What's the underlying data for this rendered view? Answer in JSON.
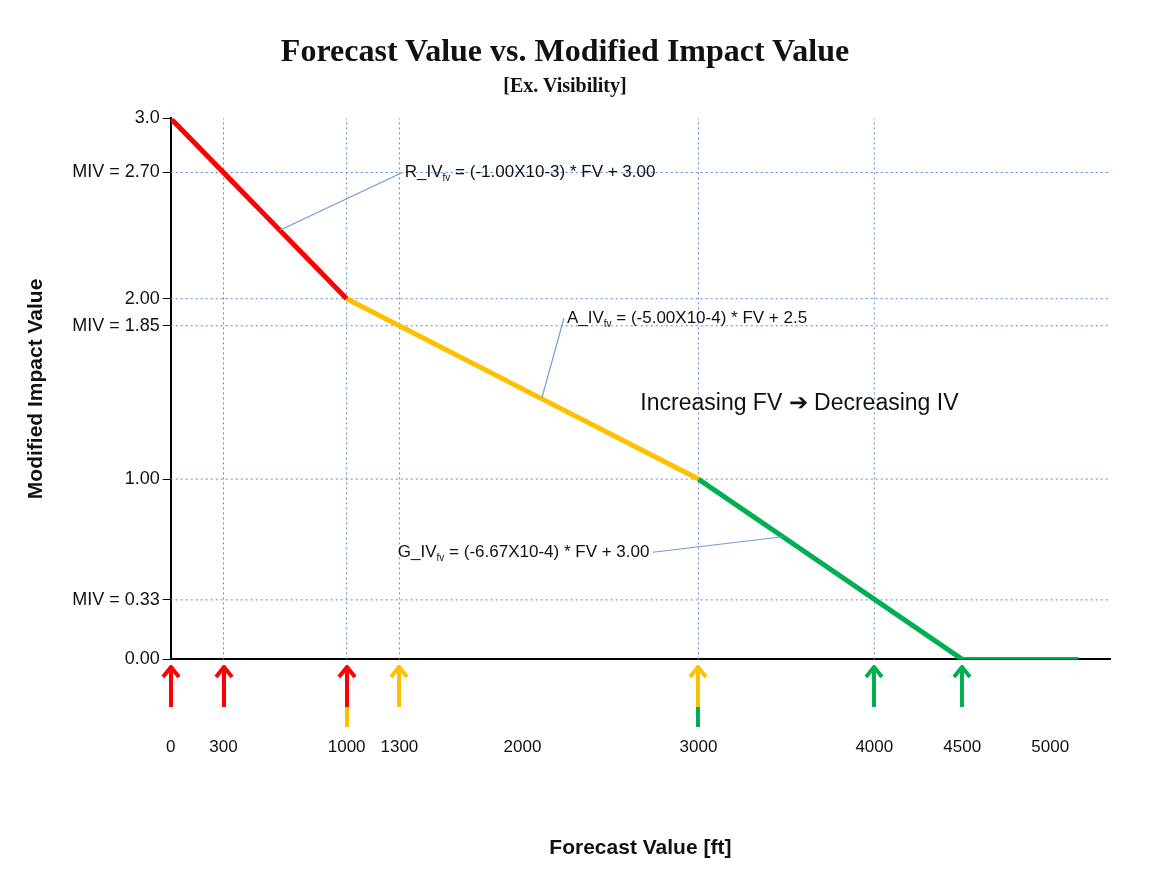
{
  "chart_data": {
    "type": "line",
    "title": "Forecast Value vs. Modified Impact Value",
    "subtitle": "[Ex. Visibility]",
    "xlabel": "Forecast Value [ft]",
    "ylabel": "Modified Impact Value",
    "series": [
      {
        "color": "#ff0000",
        "x": [
          0,
          1000
        ],
        "values": [
          3,
          2
        ]
      },
      {
        "color": "#ffc000",
        "x": [
          1000,
          3000
        ],
        "values": [
          2,
          1
        ]
      },
      {
        "color": "#00b050",
        "x": [
          3000,
          4500,
          5160
        ],
        "values": [
          1,
          0,
          0
        ]
      }
    ],
    "xlim": [
      0,
      5340
    ],
    "xticks": [
      0,
      300,
      1000,
      1300,
      2000,
      3000,
      4000,
      4500,
      5000
    ],
    "ylim": [
      0,
      3
    ],
    "yticks": [
      {
        "value": 0,
        "label": "0.00"
      },
      {
        "value": 0.33,
        "label": "MIV = 0.33"
      },
      {
        "value": 1,
        "label": "1.00"
      },
      {
        "value": 1.85,
        "label": "MIV = 1.85"
      },
      {
        "value": 2,
        "label": "2.00"
      },
      {
        "value": 2.7,
        "label": "MIV = 2.70"
      },
      {
        "value": 3,
        "label": "3.0"
      }
    ],
    "ref_lines": [
      {
        "axis": "y",
        "value": 2.7,
        "color": "#5b86d6",
        "line_style": "dotted"
      },
      {
        "axis": "y",
        "value": 2,
        "color": "#5b86d6",
        "line_style": "dotted"
      },
      {
        "axis": "y",
        "value": 1.85,
        "color": "#5b86d6",
        "line_style": "dotted"
      },
      {
        "axis": "y",
        "value": 1,
        "color": "#5b86d6",
        "line_style": "dotted"
      },
      {
        "axis": "y",
        "value": 0.33,
        "color": "#5b86d6",
        "line_style": "dotted"
      },
      {
        "axis": "x",
        "value": 300,
        "color": "#5b86d6",
        "line_style": "dotted"
      },
      {
        "axis": "x",
        "value": 1000,
        "color": "#5b86d6",
        "line_style": "dotted"
      },
      {
        "axis": "x",
        "value": 1300,
        "color": "#5b86d6",
        "line_style": "dotted"
      },
      {
        "axis": "x",
        "value": 3000,
        "color": "#5b86d6",
        "line_style": "dotted"
      },
      {
        "axis": "x",
        "value": 4000,
        "color": "#5b86d6",
        "line_style": "dotted"
      }
    ],
    "annotations": [
      {
        "text": "R_IV$_{fv}$ = (-1.00X10-3) * FV + 3.00",
        "x": 620,
        "y": 2.38
      },
      {
        "text": "A_IV$_{fv}$ = (-5.00X10-4) * FV + 2.5",
        "x": 2110,
        "y": 1.45
      },
      {
        "text": "G_IV$_{fv}$ = (-6.67X10-4) * FV + 3.00",
        "x": 3480,
        "y": 0.68
      },
      "Increasing FV ➔ Decreasing IV"
    ],
    "grid": false,
    "legend": false,
    "marker": "none",
    "line_style": "solid"
  }
}
